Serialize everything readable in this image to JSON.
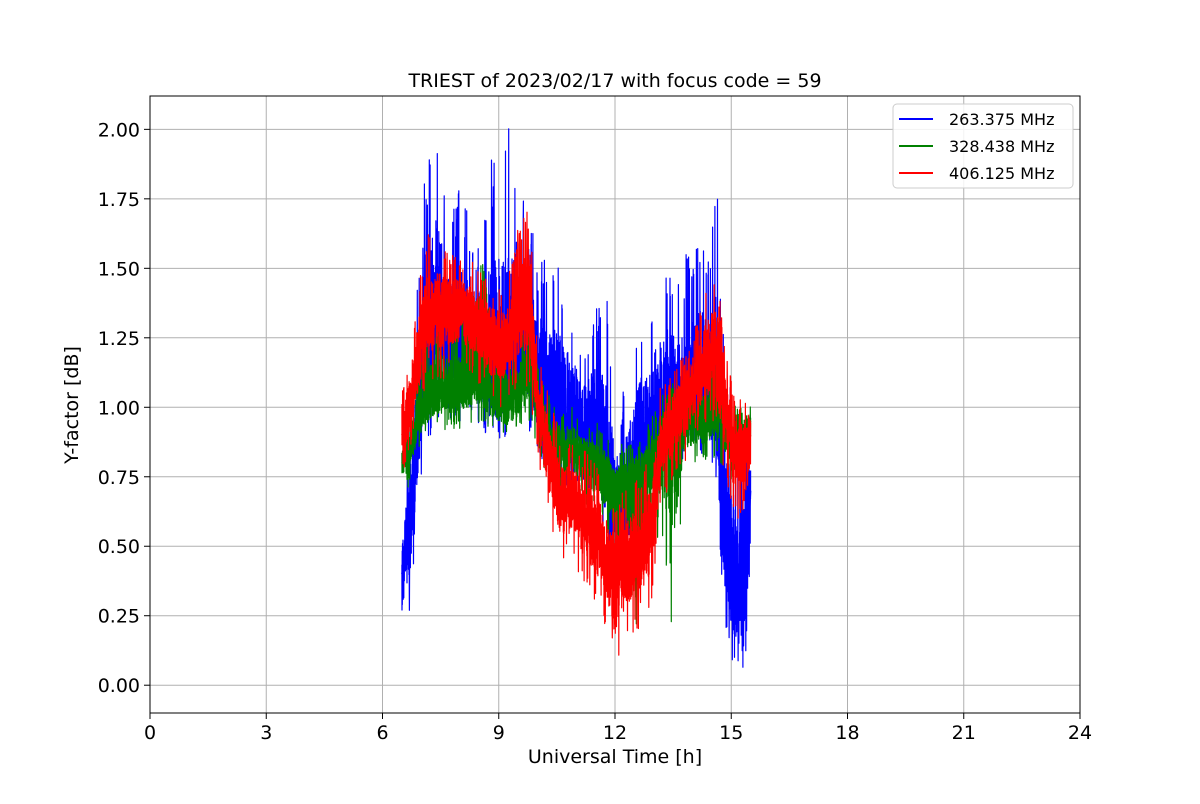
{
  "chart_data": {
    "type": "line",
    "title": "TRIEST of 2023/02/17 with focus code = 59",
    "xlabel": "Universal Time [h]",
    "ylabel": "Y-factor [dB]",
    "xlim": [
      0,
      24
    ],
    "ylim": [
      -0.1,
      2.12
    ],
    "xticks": [
      0,
      3,
      6,
      9,
      12,
      15,
      18,
      21,
      24
    ],
    "yticks": [
      0.0,
      0.25,
      0.5,
      0.75,
      1.0,
      1.25,
      1.5,
      1.75,
      2.0
    ],
    "xtick_labels": [
      "0",
      "3",
      "6",
      "9",
      "12",
      "15",
      "18",
      "21",
      "24"
    ],
    "ytick_labels": [
      "0.00",
      "0.25",
      "0.50",
      "0.75",
      "1.00",
      "1.25",
      "1.50",
      "1.75",
      "2.00"
    ],
    "grid": true,
    "legend_position": "top-right",
    "series": [
      {
        "name": "263.375 MHz",
        "color": "#0000ff",
        "x": [
          6.5,
          6.7,
          6.9,
          7.1,
          7.4,
          7.7,
          8.0,
          8.4,
          8.8,
          9.2,
          9.5,
          9.8,
          10.0,
          10.3,
          10.6,
          10.9,
          11.2,
          11.5,
          11.8,
          12.0,
          12.3,
          12.6,
          12.9,
          13.2,
          13.5,
          13.8,
          14.1,
          14.4,
          14.6,
          14.8,
          15.0,
          15.2,
          15.4,
          15.5
        ],
        "y": [
          0.4,
          0.55,
          0.9,
          1.2,
          1.35,
          1.25,
          1.2,
          1.15,
          1.05,
          1.05,
          1.2,
          1.2,
          1.05,
          1.0,
          0.95,
          0.95,
          0.9,
          0.85,
          0.75,
          0.6,
          0.65,
          0.8,
          0.9,
          1.0,
          1.05,
          0.95,
          1.05,
          1.0,
          1.0,
          0.55,
          0.35,
          0.3,
          0.45,
          0.7
        ],
        "min": [
          0.16,
          0.25,
          0.6,
          0.85,
          0.95,
          0.95,
          0.95,
          0.95,
          0.88,
          0.88,
          0.95,
          0.9,
          0.8,
          0.75,
          0.72,
          0.72,
          0.7,
          0.62,
          0.5,
          0.35,
          0.38,
          0.55,
          0.7,
          0.8,
          0.85,
          0.8,
          0.85,
          0.8,
          0.72,
          0.25,
          0.1,
          0.0,
          0.1,
          0.4
        ],
        "max": [
          0.6,
          0.95,
          1.5,
          1.87,
          2.0,
          1.7,
          1.8,
          1.6,
          1.9,
          2.02,
          1.95,
          1.7,
          1.55,
          1.55,
          1.5,
          1.35,
          1.25,
          1.4,
          1.4,
          1.0,
          1.1,
          1.35,
          1.3,
          1.55,
          1.45,
          1.55,
          1.6,
          1.6,
          1.88,
          1.3,
          1.05,
          0.9,
          1.0,
          0.95
        ]
      },
      {
        "name": "328.438 MHz",
        "color": "#008000",
        "x": [
          6.5,
          6.7,
          6.9,
          7.1,
          7.4,
          7.7,
          8.0,
          8.4,
          8.8,
          9.2,
          9.5,
          9.8,
          10.0,
          10.3,
          10.6,
          10.9,
          11.2,
          11.5,
          11.8,
          12.0,
          12.3,
          12.6,
          12.9,
          13.2,
          13.5,
          13.8,
          14.1,
          14.4,
          14.6,
          14.8,
          15.0,
          15.2,
          15.4,
          15.5
        ],
        "y": [
          0.8,
          0.85,
          0.95,
          1.0,
          1.05,
          1.05,
          1.05,
          1.1,
          1.05,
          1.0,
          1.05,
          1.15,
          1.0,
          0.9,
          0.85,
          0.85,
          0.82,
          0.8,
          0.75,
          0.7,
          0.7,
          0.75,
          0.8,
          0.9,
          0.95,
          0.95,
          0.95,
          0.95,
          1.0,
          0.95,
          0.85,
          0.85,
          0.9,
          0.95
        ],
        "min": [
          0.68,
          0.72,
          0.82,
          0.88,
          0.92,
          0.92,
          0.92,
          0.95,
          0.9,
          0.88,
          0.9,
          0.95,
          0.82,
          0.72,
          0.68,
          0.68,
          0.65,
          0.6,
          0.55,
          0.45,
          0.5,
          0.09,
          0.55,
          0.5,
          0.17,
          0.75,
          0.8,
          0.8,
          0.82,
          0.78,
          0.7,
          0.7,
          0.75,
          0.8
        ],
        "max": [
          0.95,
          1.0,
          1.15,
          1.25,
          1.3,
          1.3,
          1.3,
          1.78,
          1.3,
          1.22,
          1.25,
          1.35,
          1.15,
          1.05,
          1.0,
          1.0,
          0.95,
          0.95,
          0.9,
          0.85,
          0.88,
          0.9,
          0.95,
          1.05,
          1.1,
          1.1,
          1.15,
          1.15,
          1.15,
          1.1,
          1.05,
          1.0,
          1.05,
          1.05
        ]
      },
      {
        "name": "406.125 MHz",
        "color": "#ff0000",
        "x": [
          6.5,
          6.7,
          6.9,
          7.1,
          7.4,
          7.7,
          8.0,
          8.4,
          8.8,
          9.2,
          9.5,
          9.8,
          10.0,
          10.3,
          10.6,
          10.9,
          11.2,
          11.5,
          11.8,
          12.0,
          12.3,
          12.6,
          12.9,
          13.2,
          13.5,
          13.8,
          14.1,
          14.4,
          14.6,
          14.8,
          15.0,
          15.2,
          15.4,
          15.5
        ],
        "y": [
          0.9,
          1.0,
          1.15,
          1.3,
          1.35,
          1.35,
          1.35,
          1.3,
          1.25,
          1.2,
          1.35,
          1.4,
          1.0,
          0.8,
          0.65,
          0.65,
          0.6,
          0.55,
          0.45,
          0.4,
          0.45,
          0.5,
          0.55,
          0.85,
          0.95,
          1.0,
          1.1,
          1.15,
          1.2,
          1.05,
          0.9,
          0.85,
          0.85,
          0.9
        ],
        "min": [
          0.75,
          0.8,
          0.95,
          1.05,
          1.1,
          1.1,
          1.15,
          1.1,
          1.0,
          1.0,
          1.05,
          1.05,
          0.8,
          0.6,
          0.45,
          0.45,
          0.35,
          0.3,
          0.2,
          0.0,
          0.15,
          0.2,
          0.25,
          0.65,
          0.75,
          0.8,
          0.9,
          0.95,
          0.9,
          0.75,
          0.6,
          0.6,
          0.65,
          0.7
        ],
        "max": [
          1.05,
          1.2,
          1.4,
          1.65,
          1.6,
          1.55,
          1.55,
          1.52,
          1.45,
          1.45,
          1.65,
          1.72,
          1.2,
          1.05,
          0.9,
          0.9,
          0.85,
          0.8,
          0.72,
          0.65,
          0.72,
          0.75,
          0.82,
          1.1,
          1.15,
          1.2,
          1.3,
          1.48,
          1.5,
          1.3,
          1.1,
          1.05,
          1.05,
          1.08
        ]
      }
    ]
  }
}
